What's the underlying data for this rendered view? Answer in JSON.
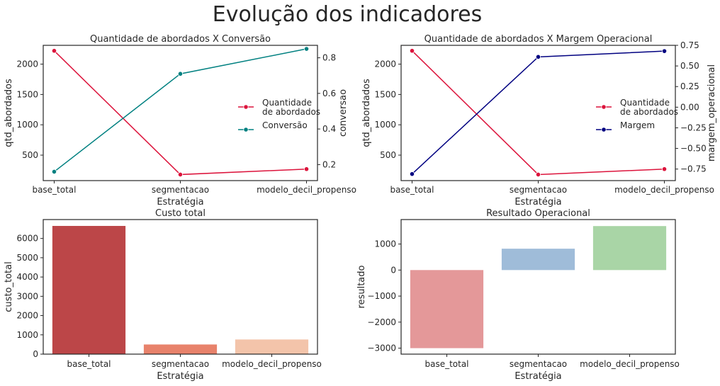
{
  "figure": {
    "suptitle": "Evolução dos indicadores"
  },
  "chart_data": [
    {
      "type": "line",
      "title": "Quantidade de abordados X Conversão",
      "xlabel": "Estratégia",
      "ylabel": "qtd_abordados",
      "ylabel_right": "conversao",
      "categories": [
        "base_total",
        "segmentacao",
        "modelo_decil_propenso"
      ],
      "ylim": [
        80,
        2310
      ],
      "ylim_right": [
        0.11,
        0.87
      ],
      "yticks": [
        500,
        1000,
        1500,
        2000
      ],
      "yticks_right": [
        0.2,
        0.4,
        0.6,
        0.8
      ],
      "legend_position": "center-right",
      "series": [
        {
          "name": "Quantidade\nde abordados",
          "axis": "left",
          "color": "#dc143c",
          "values": [
            2220,
            180,
            270
          ]
        },
        {
          "name": "Conversão",
          "axis": "right",
          "color": "#008080",
          "values": [
            0.16,
            0.71,
            0.85
          ]
        }
      ]
    },
    {
      "type": "line",
      "title": "Quantidade de abordados X Margem Operacional",
      "xlabel": "Estratégia",
      "ylabel": "qtd_abordados",
      "ylabel_right": "margem_operacional",
      "categories": [
        "base_total",
        "segmentacao",
        "modelo_decil_propenso"
      ],
      "ylim": [
        80,
        2310
      ],
      "ylim_right": [
        -0.89,
        0.75
      ],
      "yticks": [
        500,
        1000,
        1500,
        2000
      ],
      "yticks_right": [
        -0.75,
        -0.5,
        -0.25,
        0.0,
        0.25,
        0.5,
        0.75
      ],
      "yticks_right_labels": [
        "−0.75",
        "−0.50",
        "−0.25",
        "0.00",
        "0.25",
        "0.50",
        "0.75"
      ],
      "legend_position": "center-right",
      "series": [
        {
          "name": "Quantidade\nde abordados",
          "axis": "left",
          "color": "#dc143c",
          "values": [
            2220,
            180,
            270
          ]
        },
        {
          "name": "Margem",
          "axis": "right",
          "color": "#000080",
          "values": [
            -0.81,
            0.61,
            0.68
          ]
        }
      ]
    },
    {
      "type": "bar",
      "title": "Custo total",
      "xlabel": "Estratégia",
      "ylabel": "custo_total",
      "categories": [
        "base_total",
        "segmentacao",
        "modelo_decil_propenso"
      ],
      "values": [
        6650,
        500,
        760
      ],
      "colors": [
        "#bc4648",
        "#e8826b",
        "#f3c4aa"
      ],
      "ylim": [
        0,
        6980
      ],
      "yticks": [
        0,
        1000,
        2000,
        3000,
        4000,
        5000,
        6000
      ]
    },
    {
      "type": "bar",
      "title": "Resultado Operacional",
      "xlabel": "Estratégia",
      "ylabel": "resultado",
      "categories": [
        "base_total",
        "segmentacao",
        "modelo_decil_propenso"
      ],
      "values": [
        -3000,
        820,
        1690
      ],
      "colors": [
        "#e49899",
        "#9fbcd9",
        "#a9d5a6"
      ],
      "ylim": [
        -3230,
        1940
      ],
      "yticks": [
        -3000,
        -2000,
        -1000,
        0,
        1000
      ],
      "yticks_labels": [
        "−3000",
        "−2000",
        "−1000",
        "0",
        "1000"
      ]
    }
  ]
}
